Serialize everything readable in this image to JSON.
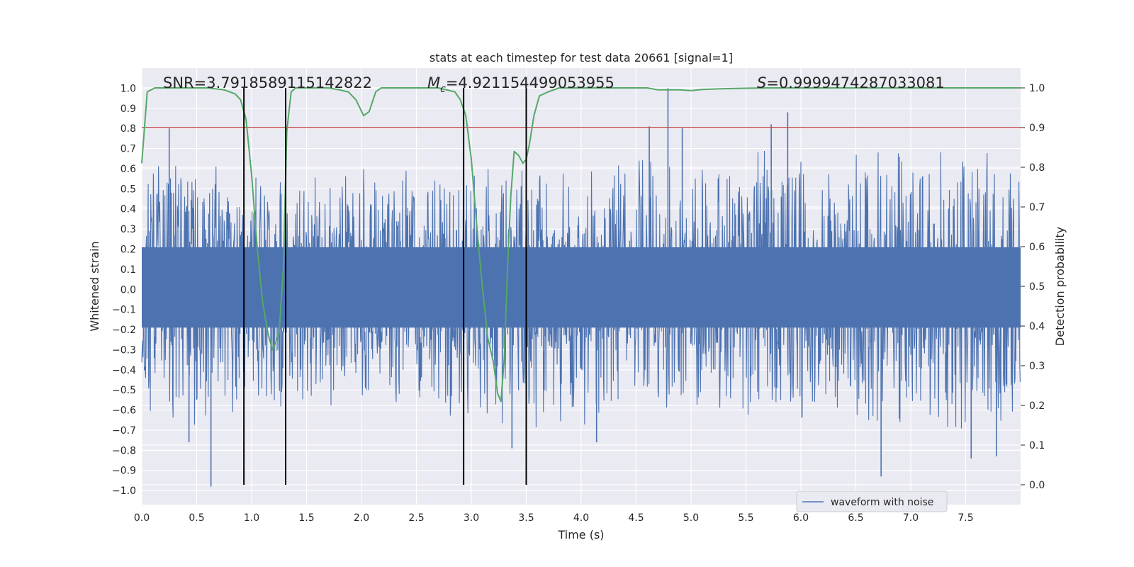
{
  "chart_data": {
    "type": "line",
    "title": "stats at each timestep for test data 20661 [signal=1]",
    "xlabel": "Time (s)",
    "ylabel_left": "Whitened strain",
    "ylabel_right": "Detection probability",
    "xlim": [
      0,
      8
    ],
    "ylim_left": [
      -1.07,
      1.1
    ],
    "ylim_right": [
      -0.05,
      1.05
    ],
    "x_ticks": [
      0,
      0.5,
      1,
      1.5,
      2,
      2.5,
      3,
      3.5,
      4,
      4.5,
      5,
      5.5,
      6,
      6.5,
      7,
      7.5
    ],
    "x_tick_labels": [
      "0.0",
      "0.5",
      "1.0",
      "1.5",
      "2.0",
      "2.5",
      "3.0",
      "3.5",
      "4.0",
      "4.5",
      "5.0",
      "5.5",
      "6.0",
      "6.5",
      "7.0",
      "7.5"
    ],
    "y_left_ticks": [
      -1,
      -0.9,
      -0.8,
      -0.7,
      -0.6,
      -0.5,
      -0.4,
      -0.3,
      -0.2,
      -0.1,
      0,
      0.1,
      0.2,
      0.3,
      0.4,
      0.5,
      0.6,
      0.7,
      0.8,
      0.9,
      1
    ],
    "y_left_tick_labels": [
      "−1.0",
      "−0.9",
      "−0.8",
      "−0.7",
      "−0.6",
      "−0.5",
      "−0.4",
      "−0.3",
      "−0.2",
      "−0.1",
      "0.0",
      "0.1",
      "0.2",
      "0.3",
      "0.4",
      "0.5",
      "0.6",
      "0.7",
      "0.8",
      "0.9",
      "1.0"
    ],
    "y_right_ticks": [
      0,
      0.1,
      0.2,
      0.3,
      0.4,
      0.5,
      0.6,
      0.7,
      0.8,
      0.9,
      1
    ],
    "y_right_tick_labels": [
      "0.0",
      "0.1",
      "0.2",
      "0.3",
      "0.4",
      "0.5",
      "0.6",
      "0.7",
      "0.8",
      "0.9",
      "1.0"
    ],
    "grid": true,
    "legend": {
      "location": "lower-right",
      "entries": [
        "waveform with noise"
      ]
    },
    "annotations": {
      "snr": "SNR=3.7918589115142822",
      "mc_symbol": "M",
      "mc_sub": "c",
      "mc_value": "=4.921154499053955",
      "s_symbol": "S",
      "s_value": "=0.9999474287033081"
    },
    "threshold": {
      "value": 0.9,
      "axis": "right"
    },
    "vertical_markers": [
      0.93,
      1.31,
      2.93,
      3.5
    ],
    "waveform": {
      "name": "waveform with noise",
      "sample_rate_hz": 256,
      "envelope": [
        {
          "t": 0.0,
          "hi": 0.62,
          "lo": -0.6
        },
        {
          "t": 0.5,
          "hi": 0.66,
          "lo": -0.7
        },
        {
          "t": 1.0,
          "hi": 0.55,
          "lo": -0.65
        },
        {
          "t": 1.5,
          "hi": 0.62,
          "lo": -0.6
        },
        {
          "t": 2.0,
          "hi": 0.6,
          "lo": -0.6
        },
        {
          "t": 2.5,
          "hi": 0.66,
          "lo": -0.62
        },
        {
          "t": 3.0,
          "hi": 0.6,
          "lo": -0.65
        },
        {
          "t": 3.5,
          "hi": 0.6,
          "lo": -0.7
        },
        {
          "t": 4.0,
          "hi": 0.62,
          "lo": -0.68
        },
        {
          "t": 4.5,
          "hi": 0.65,
          "lo": -0.62
        },
        {
          "t": 5.0,
          "hi": 0.68,
          "lo": -0.62
        },
        {
          "t": 5.5,
          "hi": 0.7,
          "lo": -0.65
        },
        {
          "t": 6.0,
          "hi": 0.68,
          "lo": -0.66
        },
        {
          "t": 6.5,
          "hi": 0.68,
          "lo": -0.66
        },
        {
          "t": 7.0,
          "hi": 0.7,
          "lo": -0.66
        },
        {
          "t": 7.5,
          "hi": 0.72,
          "lo": -0.7
        },
        {
          "t": 8.0,
          "hi": 0.7,
          "lo": -0.7
        }
      ],
      "peaks": [
        {
          "t": 4.79,
          "v": 1.0
        },
        {
          "t": 5.88,
          "v": 0.88
        },
        {
          "t": 4.62,
          "v": 0.81
        },
        {
          "t": 4.92,
          "v": 0.8
        },
        {
          "t": 5.73,
          "v": 0.82
        },
        {
          "t": 0.25,
          "v": 0.8
        },
        {
          "t": 0.63,
          "v": -0.98
        },
        {
          "t": 6.73,
          "v": -0.93
        },
        {
          "t": 7.55,
          "v": -0.84
        },
        {
          "t": 7.78,
          "v": -0.83
        },
        {
          "t": 3.37,
          "v": -0.79
        },
        {
          "t": 0.43,
          "v": -0.76
        },
        {
          "t": 4.14,
          "v": -0.76
        }
      ]
    },
    "series": [
      {
        "name": "detection probability",
        "axis": "right",
        "color": "#55a868",
        "x": [
          0.0,
          0.05,
          0.12,
          0.2,
          0.3,
          0.45,
          0.6,
          0.75,
          0.85,
          0.9,
          0.95,
          1.0,
          1.05,
          1.1,
          1.15,
          1.19,
          1.25,
          1.29,
          1.32,
          1.36,
          1.4,
          1.5,
          1.6,
          1.7,
          1.8,
          1.88,
          1.95,
          2.02,
          2.07,
          2.13,
          2.18,
          2.22,
          2.3,
          2.5,
          2.7,
          2.85,
          2.9,
          2.95,
          3.0,
          3.05,
          3.1,
          3.15,
          3.2,
          3.24,
          3.27,
          3.3,
          3.33,
          3.36,
          3.39,
          3.43,
          3.47,
          3.5,
          3.53,
          3.57,
          3.62,
          3.7,
          3.8,
          4.0,
          4.2,
          4.4,
          4.6,
          4.7,
          4.8,
          4.9,
          5.0,
          5.1,
          5.3,
          5.5,
          5.7,
          6.0,
          6.5,
          7.0,
          7.5,
          8.0
        ],
        "y": [
          0.81,
          0.99,
          1.0,
          1.0,
          1.0,
          1.0,
          1.0,
          0.995,
          0.985,
          0.97,
          0.92,
          0.78,
          0.6,
          0.46,
          0.38,
          0.34,
          0.38,
          0.55,
          0.89,
          0.99,
          1.0,
          1.0,
          1.0,
          1.0,
          0.995,
          0.99,
          0.97,
          0.93,
          0.94,
          0.99,
          1.0,
          1.0,
          1.0,
          1.0,
          1.0,
          0.99,
          0.97,
          0.93,
          0.82,
          0.65,
          0.5,
          0.37,
          0.31,
          0.23,
          0.21,
          0.32,
          0.55,
          0.73,
          0.84,
          0.83,
          0.81,
          0.82,
          0.86,
          0.93,
          0.98,
          0.99,
          1.0,
          1.0,
          1.0,
          1.0,
          1.0,
          0.995,
          0.995,
          0.995,
          0.993,
          0.996,
          0.998,
          0.999,
          1.0,
          1.0,
          1.0,
          1.0,
          1.0,
          1.0
        ]
      }
    ],
    "colors": {
      "waveform": "#4c72b0",
      "probability": "#55a868",
      "threshold": "#c44e52",
      "markers": "#000000",
      "plot_bg": "#eaeaf2",
      "grid": "#ffffff"
    }
  }
}
